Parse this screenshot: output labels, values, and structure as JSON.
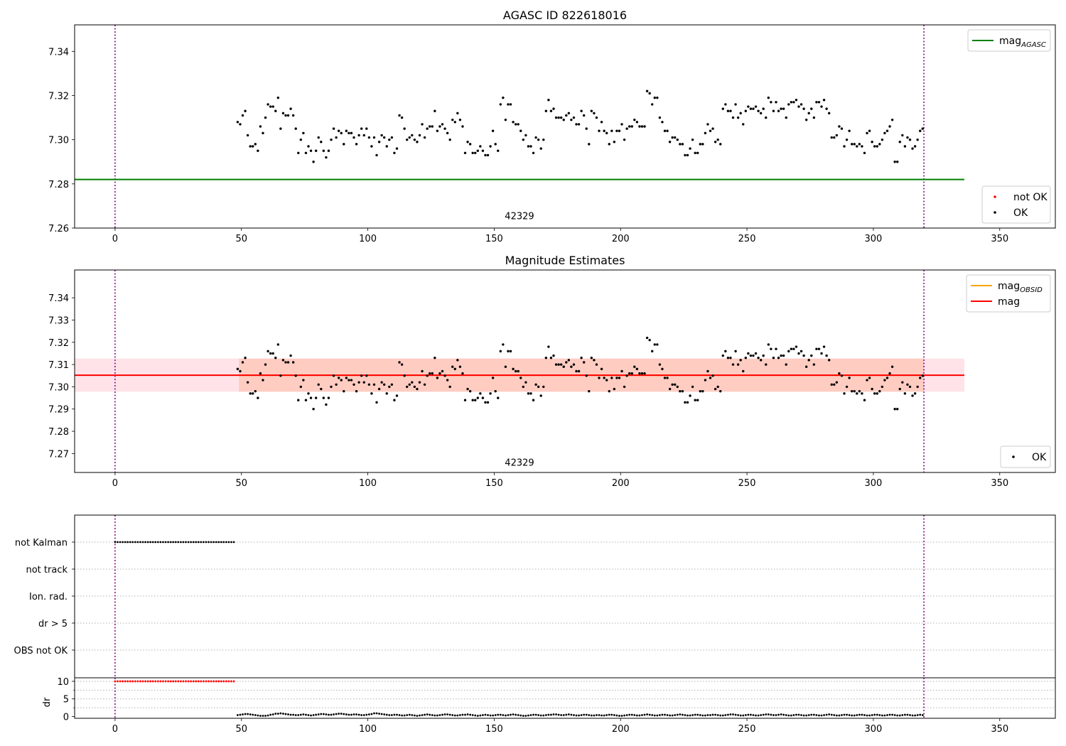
{
  "chart_data": [
    {
      "type": "scatter",
      "title": "AGASC ID 822618016",
      "xlabel": "",
      "ylabel": "",
      "xlim": [
        -16,
        372
      ],
      "ylim": [
        7.26,
        7.352
      ],
      "xticks": [
        0,
        50,
        100,
        150,
        200,
        250,
        300,
        350
      ],
      "yticks": [
        7.26,
        7.28,
        7.3,
        7.32,
        7.34
      ],
      "ytick_labels": [
        "7.26",
        "7.28",
        "7.30",
        "7.32",
        "7.34"
      ],
      "grid": false,
      "vlines": [
        0,
        320
      ],
      "vline_color": "#7f007f",
      "annotation": {
        "text": "42329",
        "x": 160,
        "y": 7.264
      },
      "hlines": [
        {
          "name": "mag_AGASC",
          "y": 7.282,
          "x": [
            -16,
            336
          ],
          "color": "#008000"
        }
      ],
      "legend_top": {
        "position": "upper-right",
        "entries": [
          {
            "label": "mag",
            "sub": "AGASC",
            "color": "#008000",
            "marker": "line"
          }
        ]
      },
      "legend_bottom": {
        "position": "lower-right",
        "entries": [
          {
            "label": "not OK",
            "color": "#ff0000",
            "marker": "dot"
          },
          {
            "label": "OK",
            "color": "#000000",
            "marker": "dot"
          }
        ]
      },
      "series": [
        {
          "name": "OK",
          "color": "#000000",
          "source": "mag_points"
        }
      ]
    },
    {
      "type": "scatter",
      "title": "Magnitude Estimates",
      "xlabel": "",
      "ylabel": "",
      "xlim": [
        -16,
        372
      ],
      "ylim": [
        7.2615,
        7.3525
      ],
      "xticks": [
        0,
        50,
        100,
        150,
        200,
        250,
        300,
        350
      ],
      "yticks": [
        7.27,
        7.28,
        7.29,
        7.3,
        7.31,
        7.32,
        7.33,
        7.34
      ],
      "ytick_labels": [
        "7.27",
        "7.28",
        "7.29",
        "7.30",
        "7.31",
        "7.32",
        "7.33",
        "7.34"
      ],
      "grid": false,
      "vlines": [
        0,
        320
      ],
      "vline_color": "#7f007f",
      "annotation": {
        "text": "42329",
        "x": 160,
        "y": 7.2645
      },
      "bands": [
        {
          "y": [
            7.2978,
            7.3127
          ],
          "x": [
            -16,
            336
          ],
          "color": "#ffc0cb",
          "opacity": 0.45
        },
        {
          "y": [
            7.2978,
            7.3127
          ],
          "x": [
            49,
            320
          ],
          "color": "#ffa07a",
          "opacity": 0.35
        }
      ],
      "hlines": [
        {
          "name": "mag_OBSID",
          "y": 7.3052,
          "x": [
            49,
            320
          ],
          "color": "#ffa500"
        },
        {
          "name": "mag",
          "y": 7.3052,
          "x": [
            -16,
            336
          ],
          "color": "#ff0000"
        }
      ],
      "legend_top": {
        "position": "upper-right",
        "entries": [
          {
            "label": "mag",
            "sub": "OBSID",
            "color": "#ffa500",
            "marker": "line"
          },
          {
            "label": "mag",
            "sub": "",
            "color": "#ff0000",
            "marker": "line"
          }
        ]
      },
      "legend_bottom": {
        "position": "lower-right",
        "entries": [
          {
            "label": "OK",
            "color": "#000000",
            "marker": "dot"
          }
        ]
      },
      "series": [
        {
          "name": "OK",
          "color": "#000000",
          "source": "mag_points"
        }
      ]
    },
    {
      "type": "scatter",
      "title": "",
      "xlim": [
        -16,
        372
      ],
      "xticks": [
        0,
        50,
        100,
        150,
        200,
        250,
        300,
        350
      ],
      "vlines": [
        0,
        320
      ],
      "vline_color": "#7f007f",
      "flag_rows": [
        "not Kalman",
        "not track",
        "Ion. rad.",
        "dr > 5",
        "OBS not OK"
      ],
      "flags": [
        {
          "row": "not Kalman",
          "x_from": 0,
          "x_to": 47.5,
          "step": 1,
          "color": "#000000"
        }
      ],
      "dr_axis": {
        "ylabel": "dr",
        "ylim": [
          -0.5,
          11
        ],
        "yticks": [
          0,
          5,
          10
        ],
        "ytick_labels": [
          "0",
          "5",
          "10"
        ],
        "grid_values": [
          2.5,
          5,
          7.5,
          10
        ]
      },
      "dr_series": [
        {
          "name": "dr clipped",
          "color": "#ff0000",
          "x_from": 0,
          "x_to": 47.5,
          "step": 1,
          "value": 10
        },
        {
          "name": "dr",
          "color": "#000000",
          "x_from": 48.5,
          "x_to": 320,
          "step": 1,
          "values": [
            0.4,
            0.5,
            0.6,
            0.7,
            0.7,
            0.6,
            0.5,
            0.4,
            0.3,
            0.2,
            0.2,
            0.2,
            0.3,
            0.5,
            0.6,
            0.8,
            0.8,
            0.9,
            0.8,
            0.7,
            0.6,
            0.5,
            0.5,
            0.4,
            0.4,
            0.5,
            0.6,
            0.5,
            0.4,
            0.3,
            0.4,
            0.5,
            0.6,
            0.7,
            0.7,
            0.6,
            0.5,
            0.5,
            0.6,
            0.7,
            0.8,
            0.8,
            0.7,
            0.6,
            0.5,
            0.5,
            0.6,
            0.6,
            0.5,
            0.4,
            0.4,
            0.5,
            0.6,
            0.7,
            0.9,
            0.9,
            0.8,
            0.7,
            0.6,
            0.5,
            0.4,
            0.4,
            0.5,
            0.5,
            0.4,
            0.3,
            0.3,
            0.4,
            0.5,
            0.4,
            0.3,
            0.2,
            0.3,
            0.4,
            0.5,
            0.6,
            0.5,
            0.4,
            0.3,
            0.3,
            0.4,
            0.5,
            0.6,
            0.6,
            0.5,
            0.4,
            0.3,
            0.3,
            0.4,
            0.5,
            0.5,
            0.6,
            0.5,
            0.4,
            0.3,
            0.2,
            0.3,
            0.4,
            0.5,
            0.4,
            0.3,
            0.3,
            0.4,
            0.5,
            0.5,
            0.4,
            0.3,
            0.4,
            0.5,
            0.6,
            0.5,
            0.4,
            0.3,
            0.2,
            0.2,
            0.3,
            0.4,
            0.5,
            0.5,
            0.4,
            0.3,
            0.3,
            0.4,
            0.5,
            0.5,
            0.6,
            0.6,
            0.5,
            0.4,
            0.4,
            0.5,
            0.6,
            0.5,
            0.4,
            0.3,
            0.3,
            0.4,
            0.5,
            0.5,
            0.4,
            0.3,
            0.3,
            0.4,
            0.4,
            0.3,
            0.3,
            0.4,
            0.5,
            0.5,
            0.4,
            0.3,
            0.2,
            0.2,
            0.3,
            0.4,
            0.5,
            0.5,
            0.4,
            0.3,
            0.3,
            0.4,
            0.5,
            0.6,
            0.5,
            0.4,
            0.3,
            0.3,
            0.4,
            0.5,
            0.5,
            0.4,
            0.3,
            0.3,
            0.4,
            0.5,
            0.6,
            0.5,
            0.4,
            0.3,
            0.3,
            0.4,
            0.5,
            0.5,
            0.4,
            0.3,
            0.3,
            0.4,
            0.4,
            0.5,
            0.5,
            0.4,
            0.3,
            0.3,
            0.4,
            0.5,
            0.6,
            0.6,
            0.5,
            0.4,
            0.3,
            0.3,
            0.4,
            0.5,
            0.5,
            0.4,
            0.3,
            0.3,
            0.4,
            0.5,
            0.6,
            0.6,
            0.5,
            0.4,
            0.4,
            0.5,
            0.6,
            0.5,
            0.4,
            0.3,
            0.3,
            0.4,
            0.5,
            0.5,
            0.4,
            0.3,
            0.3,
            0.4,
            0.5,
            0.5,
            0.4,
            0.3,
            0.3,
            0.4,
            0.5,
            0.6,
            0.5,
            0.4,
            0.3,
            0.3,
            0.4,
            0.5,
            0.5,
            0.4,
            0.3,
            0.3,
            0.4,
            0.5,
            0.5,
            0.4,
            0.3,
            0.3,
            0.4,
            0.5,
            0.5,
            0.4,
            0.3,
            0.3,
            0.4,
            0.5,
            0.5,
            0.4,
            0.3,
            0.3,
            0.4,
            0.5,
            0.5,
            0.4,
            0.3,
            0.3,
            0.4,
            0.5,
            0.4
          ]
        }
      ]
    }
  ],
  "mag_points": {
    "x_from": 48.5,
    "x_to": 320,
    "step": 1,
    "values": [
      7.308,
      7.307,
      7.311,
      7.313,
      7.302,
      7.297,
      7.297,
      7.298,
      7.295,
      7.306,
      7.303,
      7.31,
      7.316,
      7.315,
      7.315,
      7.313,
      7.319,
      7.305,
      7.312,
      7.311,
      7.311,
      7.314,
      7.311,
      7.305,
      7.294,
      7.3,
      7.303,
      7.294,
      7.297,
      7.295,
      7.29,
      7.295,
      7.301,
      7.299,
      7.295,
      7.292,
      7.295,
      7.3,
      7.305,
      7.301,
      7.304,
      7.303,
      7.298,
      7.304,
      7.303,
      7.303,
      7.301,
      7.298,
      7.302,
      7.305,
      7.302,
      7.305,
      7.301,
      7.297,
      7.301,
      7.293,
      7.299,
      7.302,
      7.301,
      7.297,
      7.3,
      7.301,
      7.294,
      7.296,
      7.311,
      7.31,
      7.305,
      7.3,
      7.301,
      7.302,
      7.3,
      7.299,
      7.302,
      7.307,
      7.301,
      7.305,
      7.306,
      7.306,
      7.313,
      7.304,
      7.306,
      7.307,
      7.305,
      7.303,
      7.3,
      7.309,
      7.308,
      7.312,
      7.309,
      7.306,
      7.294,
      7.299,
      7.298,
      7.294,
      7.294,
      7.295,
      7.297,
      7.295,
      7.293,
      7.293,
      7.297,
      7.304,
      7.298,
      7.295,
      7.316,
      7.319,
      7.309,
      7.316,
      7.316,
      7.308,
      7.307,
      7.307,
      7.304,
      7.3,
      7.302,
      7.297,
      7.297,
      7.294,
      7.301,
      7.3,
      7.296,
      7.3,
      7.313,
      7.318,
      7.313,
      7.314,
      7.31,
      7.31,
      7.31,
      7.309,
      7.311,
      7.312,
      7.309,
      7.31,
      7.307,
      7.307,
      7.313,
      7.311,
      7.305,
      7.298,
      7.313,
      7.312,
      7.31,
      7.304,
      7.308,
      7.304,
      7.303,
      7.298,
      7.304,
      7.299,
      7.304,
      7.304,
      7.307,
      7.3,
      7.305,
      7.306,
      7.306,
      7.309,
      7.308,
      7.306,
      7.306,
      7.306,
      7.322,
      7.321,
      7.316,
      7.319,
      7.319,
      7.31,
      7.308,
      7.304,
      7.304,
      7.299,
      7.301,
      7.301,
      7.3,
      7.298,
      7.298,
      7.293,
      7.293,
      7.296,
      7.3,
      7.294,
      7.294,
      7.298,
      7.298,
      7.303,
      7.307,
      7.304,
      7.305,
      7.299,
      7.3,
      7.298,
      7.314,
      7.316,
      7.313,
      7.313,
      7.31,
      7.316,
      7.31,
      7.312,
      7.307,
      7.313,
      7.315,
      7.314,
      7.314,
      7.315,
      7.313,
      7.312,
      7.314,
      7.31,
      7.319,
      7.317,
      7.313,
      7.317,
      7.313,
      7.314,
      7.314,
      7.31,
      7.316,
      7.317,
      7.317,
      7.318,
      7.315,
      7.316,
      7.314,
      7.309,
      7.312,
      7.314,
      7.31,
      7.317,
      7.317,
      7.315,
      7.318,
      7.314,
      7.312,
      7.301,
      7.301,
      7.302,
      7.306,
      7.305,
      7.297,
      7.3,
      7.304,
      7.298,
      7.298,
      7.297,
      7.298,
      7.297,
      7.294,
      7.303,
      7.304,
      7.299,
      7.297,
      7.297,
      7.298,
      7.3,
      7.303,
      7.304,
      7.306,
      7.309,
      7.29,
      7.29,
      7.299,
      7.302,
      7.297,
      7.301,
      7.3,
      7.296,
      7.297,
      7.3,
      7.304,
      7.305
    ]
  }
}
